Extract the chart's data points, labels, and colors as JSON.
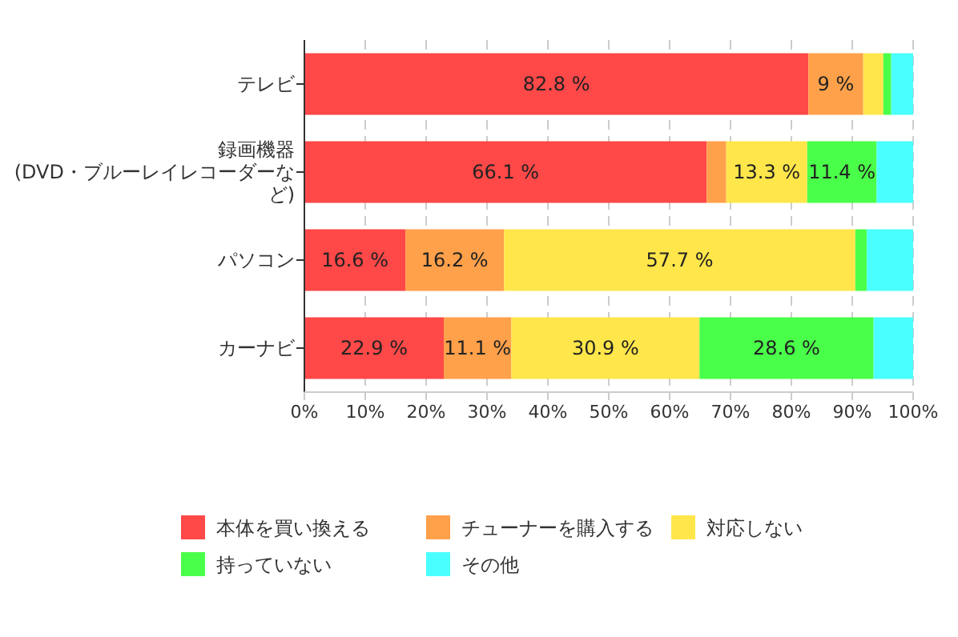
{
  "chart_data": {
    "type": "bar",
    "orientation": "horizontal",
    "stacked": true,
    "categories": [
      "テレビ",
      "録画機器(DVD・ブルーレイレコーダーなど)",
      "パソコン",
      "カーナビ"
    ],
    "series": [
      {
        "name": "本体を買い換える",
        "color": "#ff4848",
        "values": [
          82.8,
          66.1,
          16.6,
          22.9
        ],
        "value_labels": [
          "82.8 %",
          "66.1 %",
          "16.6 %",
          "22.9 %"
        ]
      },
      {
        "name": "チューナーを購入する",
        "color": "#ffa04a",
        "values": [
          9,
          3.2,
          16.2,
          11.1
        ],
        "value_labels": [
          "9 %",
          null,
          "16.2 %",
          "11.1 %"
        ]
      },
      {
        "name": "対応しない",
        "color": "#ffe64a",
        "values": [
          3.3,
          13.3,
          57.7,
          30.9
        ],
        "value_labels": [
          null,
          "13.3 %",
          "57.7 %",
          "30.9 %"
        ]
      },
      {
        "name": "持っていない",
        "color": "#4aff4a",
        "values": [
          1.3,
          11.4,
          1.9,
          28.6
        ],
        "value_labels": [
          null,
          "11.4 %",
          null,
          "28.6 %"
        ]
      },
      {
        "name": "その他",
        "color": "#4affff",
        "values": [
          3.6,
          6.0,
          7.6,
          6.5
        ],
        "value_labels": [
          null,
          null,
          null,
          null
        ]
      }
    ],
    "xlim": [
      0,
      100
    ],
    "xticks": [
      {
        "value": 0,
        "label": "0%"
      },
      {
        "value": 10,
        "label": "10%"
      },
      {
        "value": 20,
        "label": "20%"
      },
      {
        "value": 30,
        "label": "30%"
      },
      {
        "value": 40,
        "label": "40%"
      },
      {
        "value": 50,
        "label": "50%"
      },
      {
        "value": 60,
        "label": "60%"
      },
      {
        "value": 70,
        "label": "70%"
      },
      {
        "value": 80,
        "label": "80%"
      },
      {
        "value": 90,
        "label": "90%"
      },
      {
        "value": 100,
        "label": "100%"
      }
    ],
    "grid": "x",
    "legend": "bottom"
  }
}
